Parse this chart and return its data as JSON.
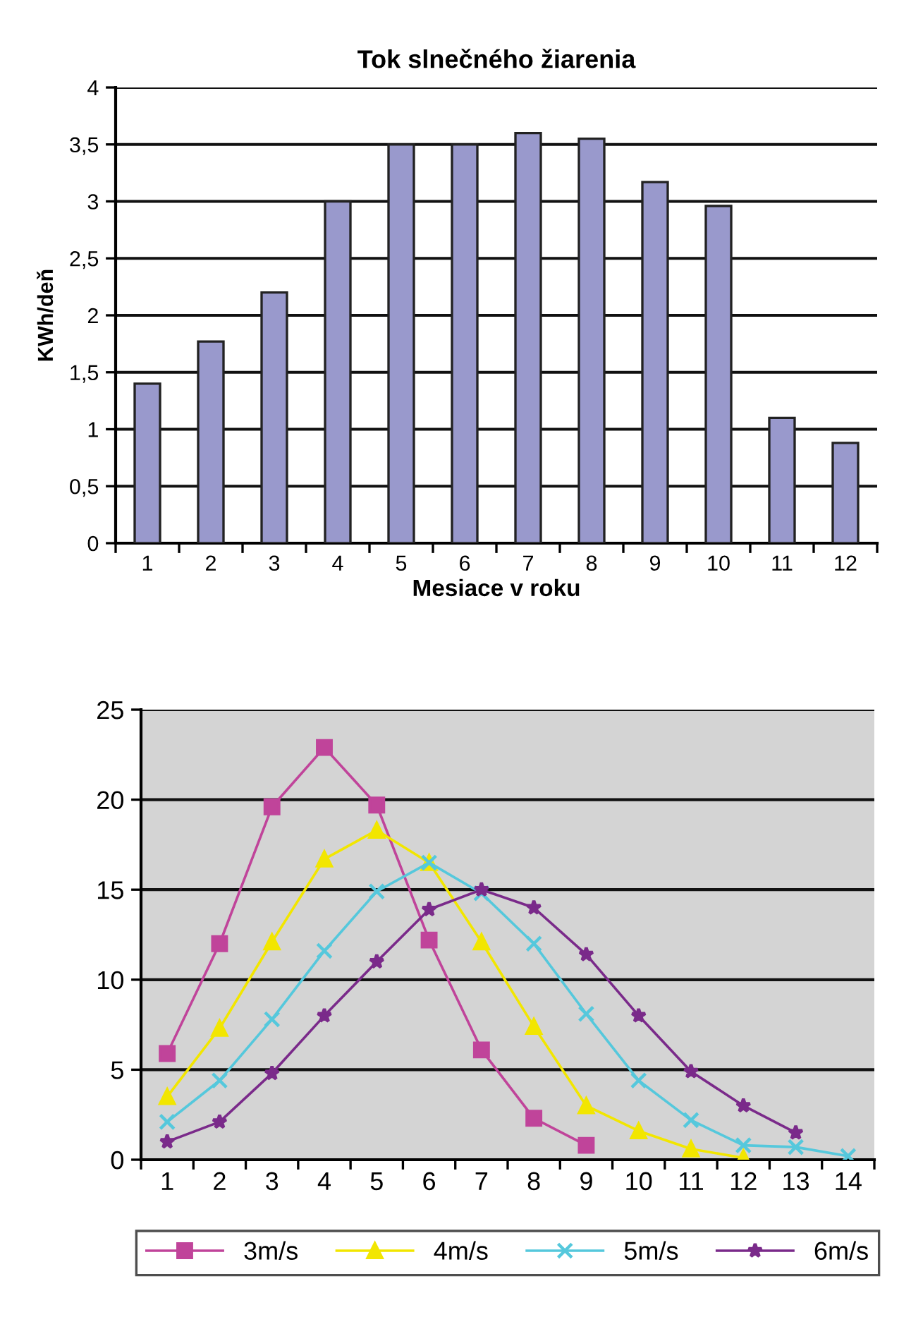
{
  "chart_data": [
    {
      "type": "bar",
      "title": "Tok slnečného žiarenia",
      "xlabel": "Mesiace v roku",
      "ylabel": "KWh/deň",
      "categories": [
        "1",
        "2",
        "3",
        "4",
        "5",
        "6",
        "7",
        "8",
        "9",
        "10",
        "11",
        "12"
      ],
      "values": [
        1.4,
        1.77,
        2.2,
        3.0,
        3.5,
        3.5,
        3.6,
        3.55,
        3.17,
        2.96,
        1.1,
        0.88
      ],
      "color": "#9999cc",
      "ylim": [
        0,
        4
      ],
      "yticks": [
        0,
        {
          "value": 0.5,
          "label": "0,5"
        },
        1,
        {
          "value": 1.5,
          "label": "1,5"
        },
        2,
        {
          "value": 2.5,
          "label": "2,5"
        },
        3,
        {
          "value": 3.5,
          "label": "3,5"
        },
        4
      ],
      "grid": "y",
      "legend": false
    },
    {
      "type": "line",
      "categories": [
        "1",
        "2",
        "3",
        "4",
        "5",
        "6",
        "7",
        "8",
        "9",
        "10",
        "11",
        "12",
        "13",
        "14"
      ],
      "series": [
        {
          "name": "3m/s",
          "color": "#c0449a",
          "marker": "square",
          "values": [
            5.9,
            12.0,
            19.6,
            22.9,
            19.7,
            12.2,
            6.1,
            2.3,
            0.8,
            null,
            null,
            null,
            null,
            null
          ]
        },
        {
          "name": "4m/s",
          "color": "#f2e600",
          "marker": "triangle",
          "values": [
            3.5,
            7.3,
            12.1,
            16.7,
            18.3,
            16.5,
            12.1,
            7.4,
            3.0,
            1.6,
            0.6,
            0.1,
            null,
            null
          ]
        },
        {
          "name": "5m/s",
          "color": "#55c8dc",
          "marker": "cross",
          "values": [
            2.1,
            4.4,
            7.8,
            11.6,
            14.9,
            16.5,
            14.8,
            12.0,
            8.1,
            4.4,
            2.2,
            0.8,
            0.7,
            0.2
          ]
        },
        {
          "name": "6m/s",
          "color": "#7a2a8a",
          "marker": "star",
          "values": [
            1.0,
            2.1,
            4.8,
            8.0,
            11.0,
            13.9,
            15.0,
            14.0,
            11.4,
            8.0,
            4.9,
            3.0,
            1.5,
            null
          ]
        }
      ],
      "ylim": [
        0,
        25
      ],
      "yticks": [
        0,
        5,
        10,
        15,
        20,
        25
      ],
      "grid": "y",
      "legend": "bottom"
    }
  ]
}
